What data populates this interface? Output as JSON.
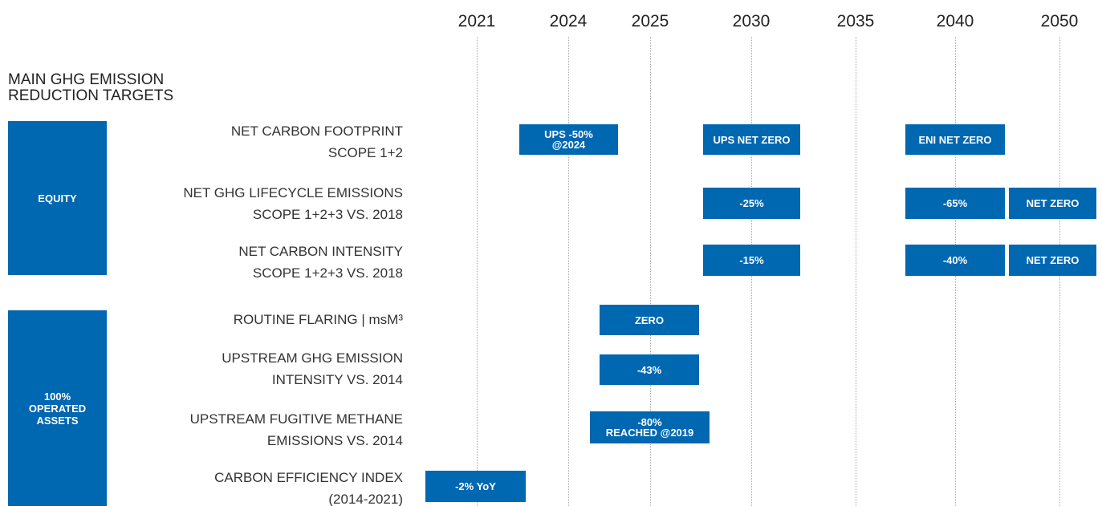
{
  "years": [
    "2021",
    "2024",
    "2025",
    "2030",
    "2035",
    "2040",
    "2050"
  ],
  "title_lines": [
    "MAIN GHG EMISSION",
    "REDUCTION TARGETS"
  ],
  "groups": [
    {
      "label_lines": [
        "EQUITY"
      ]
    },
    {
      "label_lines": [
        "100%",
        "OPERATED",
        "ASSETS"
      ]
    }
  ],
  "rows": [
    {
      "label_lines": [
        "NET CARBON FOOTPRINT",
        "SCOPE 1+2"
      ],
      "targets": [
        [
          "UPS -50%",
          "@2024"
        ],
        [
          "UPS NET ZERO"
        ],
        [
          "ENI NET ZERO"
        ]
      ]
    },
    {
      "label_lines": [
        "NET GHG LIFECYCLE EMISSIONS",
        "SCOPE 1+2+3 VS. 2018"
      ],
      "targets": [
        [
          "-25%"
        ],
        [
          "-65%"
        ],
        [
          "NET ZERO"
        ]
      ]
    },
    {
      "label_lines": [
        "NET CARBON INTENSITY",
        "SCOPE 1+2+3 VS. 2018"
      ],
      "targets": [
        [
          "-15%"
        ],
        [
          "-40%"
        ],
        [
          "NET ZERO"
        ]
      ]
    },
    {
      "label_lines": [
        "ROUTINE FLARING | msM³"
      ],
      "targets": [
        [
          "ZERO"
        ]
      ]
    },
    {
      "label_lines": [
        "UPSTREAM GHG EMISSION",
        "INTENSITY VS. 2014"
      ],
      "targets": [
        [
          "-43%"
        ]
      ]
    },
    {
      "label_lines": [
        "UPSTREAM FUGITIVE METHANE",
        "EMISSIONS VS. 2014"
      ],
      "targets": [
        [
          "-80%",
          "REACHED @2019"
        ]
      ]
    },
    {
      "label_lines": [
        "CARBON EFFICIENCY INDEX",
        "(2014-2021)"
      ],
      "targets": [
        [
          "-2% YoY"
        ]
      ]
    }
  ]
}
